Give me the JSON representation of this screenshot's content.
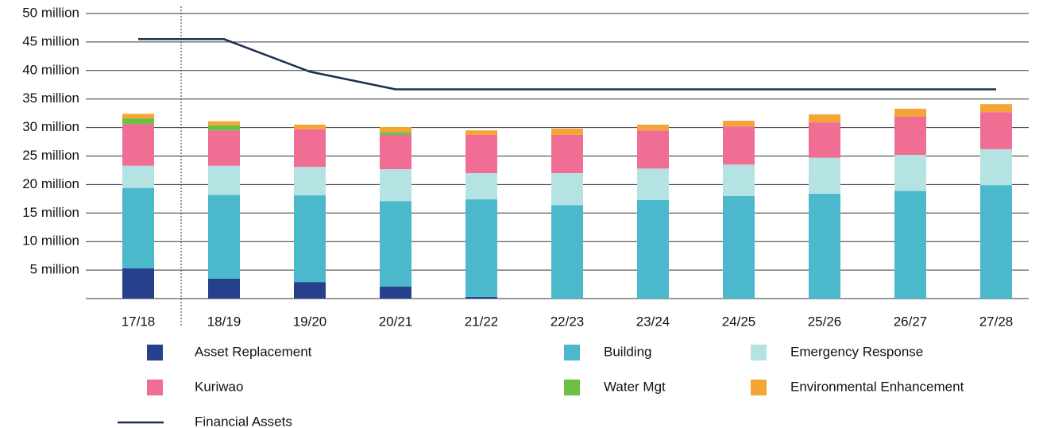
{
  "chart_data": {
    "type": "bar",
    "stacked": true,
    "categories": [
      "17/18",
      "18/19",
      "19/20",
      "20/21",
      "21/22",
      "22/23",
      "23/24",
      "24/25",
      "25/26",
      "26/27",
      "27/28"
    ],
    "series": [
      {
        "name": "Asset Replacement",
        "color": "#27408b",
        "values": [
          5300000,
          3500000,
          2900000,
          2100000,
          300000,
          0,
          0,
          0,
          0,
          0,
          0
        ]
      },
      {
        "name": "Building",
        "color": "#4bb8cc",
        "values": [
          14100000,
          14700000,
          15200000,
          15000000,
          17100000,
          16400000,
          17300000,
          18000000,
          18400000,
          18900000,
          19900000
        ]
      },
      {
        "name": "Emergency Response",
        "color": "#b5e3e3",
        "values": [
          3900000,
          5100000,
          5000000,
          5600000,
          4600000,
          5600000,
          5500000,
          5500000,
          6300000,
          6300000,
          6300000
        ]
      },
      {
        "name": "Kuriwao",
        "color": "#f06d94",
        "values": [
          7300000,
          6200000,
          6600000,
          6000000,
          6700000,
          6700000,
          6700000,
          6700000,
          6200000,
          6700000,
          6500000
        ]
      },
      {
        "name": "Water Mgt",
        "color": "#6cbf44",
        "values": [
          1000000,
          900000,
          0,
          500000,
          0,
          0,
          0,
          0,
          0,
          0,
          0
        ]
      },
      {
        "name": "Environmental Enhancement",
        "color": "#f5a535",
        "values": [
          800000,
          700000,
          800000,
          900000,
          800000,
          1100000,
          1000000,
          1000000,
          1400000,
          1400000,
          1400000
        ]
      },
      {
        "name": "Financial Assets",
        "type": "line",
        "color": "#1c2e52",
        "values": [
          45500000,
          45500000,
          39800000,
          36700000,
          36700000,
          36700000,
          36700000,
          36700000,
          36700000,
          36700000,
          36700000
        ]
      }
    ],
    "ylim": [
      0,
      50000000
    ],
    "yticks": [
      {
        "value": 5000000,
        "label": "5 million"
      },
      {
        "value": 10000000,
        "label": "10 million"
      },
      {
        "value": 15000000,
        "label": "15 million"
      },
      {
        "value": 20000000,
        "label": "20 million"
      },
      {
        "value": 25000000,
        "label": "25 million"
      },
      {
        "value": 30000000,
        "label": "30 million"
      },
      {
        "value": 35000000,
        "label": "35 million"
      },
      {
        "value": 40000000,
        "label": "40 million"
      },
      {
        "value": 45000000,
        "label": "45 million"
      },
      {
        "value": 50000000,
        "label": "50 million"
      }
    ],
    "grid": true
  }
}
